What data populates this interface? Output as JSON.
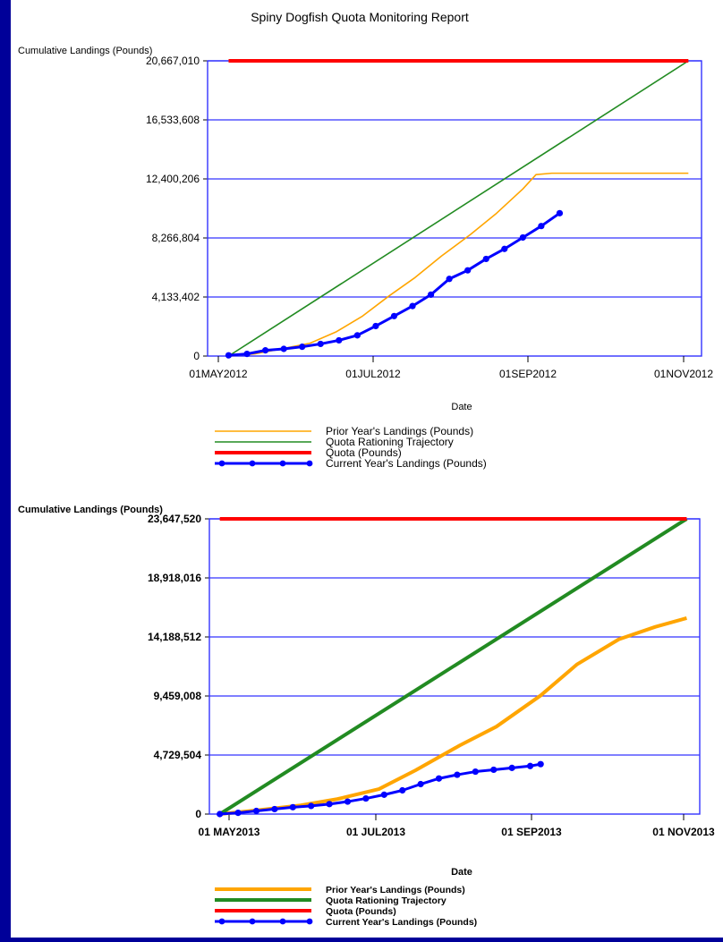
{
  "report_title": "Spiny Dogfish Quota Monitoring Report",
  "colors": {
    "background": "#000099",
    "grid": "#3333ff",
    "prior": "#ffa500",
    "trajectory": "#228b22",
    "quota": "#ff0000",
    "current": "#0000ff"
  },
  "chart_data": [
    {
      "type": "line",
      "title": "Spiny Dogfish Quota Monitoring Report",
      "xlabel": "Date",
      "ylabel": "Cumulative Landings (Pounds)",
      "x_ticks": [
        "01MAY2012",
        "01JUL2012",
        "01SEP2012",
        "01NOV2012"
      ],
      "y_ticks": [
        "0",
        "4,133,402",
        "8,266,804",
        "12,400,206",
        "16,533,608",
        "20,667,010"
      ],
      "ylim": [
        0,
        20667010
      ],
      "xlim": [
        "2012-04-27",
        "2012-11-01"
      ],
      "grid": true,
      "legend_position": "bottom",
      "series": [
        {
          "name": "Prior Year's Landings (Pounds)",
          "style": "line",
          "color": "#ffa500",
          "points": [
            [
              "2012-05-05",
              0
            ],
            [
              "2012-05-15",
              150000
            ],
            [
              "2012-05-25",
              500000
            ],
            [
              "2012-06-05",
              900000
            ],
            [
              "2012-06-15",
              1700000
            ],
            [
              "2012-06-25",
              2800000
            ],
            [
              "2012-07-05",
              4200000
            ],
            [
              "2012-07-15",
              5500000
            ],
            [
              "2012-07-25",
              7000000
            ],
            [
              "2012-08-05",
              8500000
            ],
            [
              "2012-08-15",
              10000000
            ],
            [
              "2012-08-25",
              11700000
            ],
            [
              "2012-08-30",
              12700000
            ],
            [
              "2012-09-05",
              12800000
            ],
            [
              "2012-10-27",
              12800000
            ]
          ]
        },
        {
          "name": "Quota Rationing Trajectory",
          "style": "line",
          "color": "#228b22",
          "points": [
            [
              "2012-05-05",
              0
            ],
            [
              "2012-10-27",
              20667010
            ]
          ]
        },
        {
          "name": "Quota (Pounds)",
          "style": "thick",
          "color": "#ff0000",
          "points": [
            [
              "2012-05-05",
              20667010
            ],
            [
              "2012-10-27",
              20667010
            ]
          ]
        },
        {
          "name": "Current Year's Landings (Pounds)",
          "style": "markers",
          "color": "#0000ff",
          "points": [
            [
              "2012-05-05",
              50000
            ],
            [
              "2012-05-12",
              150000
            ],
            [
              "2012-05-19",
              400000
            ],
            [
              "2012-05-26",
              500000
            ],
            [
              "2012-06-02",
              650000
            ],
            [
              "2012-06-09",
              850000
            ],
            [
              "2012-06-16",
              1100000
            ],
            [
              "2012-06-23",
              1450000
            ],
            [
              "2012-06-30",
              2100000
            ],
            [
              "2012-07-07",
              2800000
            ],
            [
              "2012-07-14",
              3500000
            ],
            [
              "2012-07-21",
              4300000
            ],
            [
              "2012-07-28",
              5400000
            ],
            [
              "2012-08-04",
              6000000
            ],
            [
              "2012-08-11",
              6800000
            ],
            [
              "2012-08-18",
              7500000
            ],
            [
              "2012-08-25",
              8300000
            ],
            [
              "2012-09-01",
              9100000
            ],
            [
              "2012-09-08",
              10000000
            ]
          ]
        }
      ]
    },
    {
      "type": "line",
      "xlabel": "Date",
      "ylabel": "Cumulative Landings (Pounds)",
      "x_ticks": [
        "01 MAY2013",
        "01 JUL2013",
        "01 SEP2013",
        "01 NOV2013"
      ],
      "y_ticks": [
        "0",
        "4,729,504",
        "9,459,008",
        "14,188,512",
        "18,918,016",
        "23,647,520"
      ],
      "ylim": [
        0,
        23647520
      ],
      "xlim": [
        "2013-04-27",
        "2013-11-01"
      ],
      "grid": true,
      "legend_position": "bottom",
      "series": [
        {
          "name": "Prior Year's Landings (Pounds)",
          "style": "thick",
          "color": "#ffa500",
          "points": [
            [
              "2013-05-01",
              0
            ],
            [
              "2013-05-15",
              300000
            ],
            [
              "2013-06-01",
              700000
            ],
            [
              "2013-06-15",
              1200000
            ],
            [
              "2013-07-01",
              2000000
            ],
            [
              "2013-07-15",
              3500000
            ],
            [
              "2013-08-01",
              5500000
            ],
            [
              "2013-08-15",
              7000000
            ],
            [
              "2013-09-01",
              9500000
            ],
            [
              "2013-09-15",
              12000000
            ],
            [
              "2013-10-01",
              14000000
            ],
            [
              "2013-10-15",
              15000000
            ],
            [
              "2013-10-27",
              15700000
            ]
          ]
        },
        {
          "name": "Quota Rationing Trajectory",
          "style": "thick",
          "color": "#228b22",
          "points": [
            [
              "2013-05-01",
              0
            ],
            [
              "2013-10-27",
              23647520
            ]
          ]
        },
        {
          "name": "Quota (Pounds)",
          "style": "thick",
          "color": "#ff0000",
          "points": [
            [
              "2013-05-01",
              23647520
            ],
            [
              "2013-10-27",
              23647520
            ]
          ]
        },
        {
          "name": "Current Year's Landings (Pounds)",
          "style": "markers",
          "color": "#0000ff",
          "points": [
            [
              "2013-05-01",
              0
            ],
            [
              "2013-05-08",
              100000
            ],
            [
              "2013-05-15",
              250000
            ],
            [
              "2013-05-22",
              400000
            ],
            [
              "2013-05-29",
              550000
            ],
            [
              "2013-06-05",
              650000
            ],
            [
              "2013-06-12",
              800000
            ],
            [
              "2013-06-19",
              1000000
            ],
            [
              "2013-06-26",
              1250000
            ],
            [
              "2013-07-03",
              1550000
            ],
            [
              "2013-07-10",
              1900000
            ],
            [
              "2013-07-17",
              2400000
            ],
            [
              "2013-07-24",
              2850000
            ],
            [
              "2013-07-31",
              3150000
            ],
            [
              "2013-08-07",
              3400000
            ],
            [
              "2013-08-14",
              3550000
            ],
            [
              "2013-08-21",
              3700000
            ],
            [
              "2013-08-28",
              3850000
            ],
            [
              "2013-09-01",
              4000000
            ]
          ]
        }
      ]
    }
  ]
}
